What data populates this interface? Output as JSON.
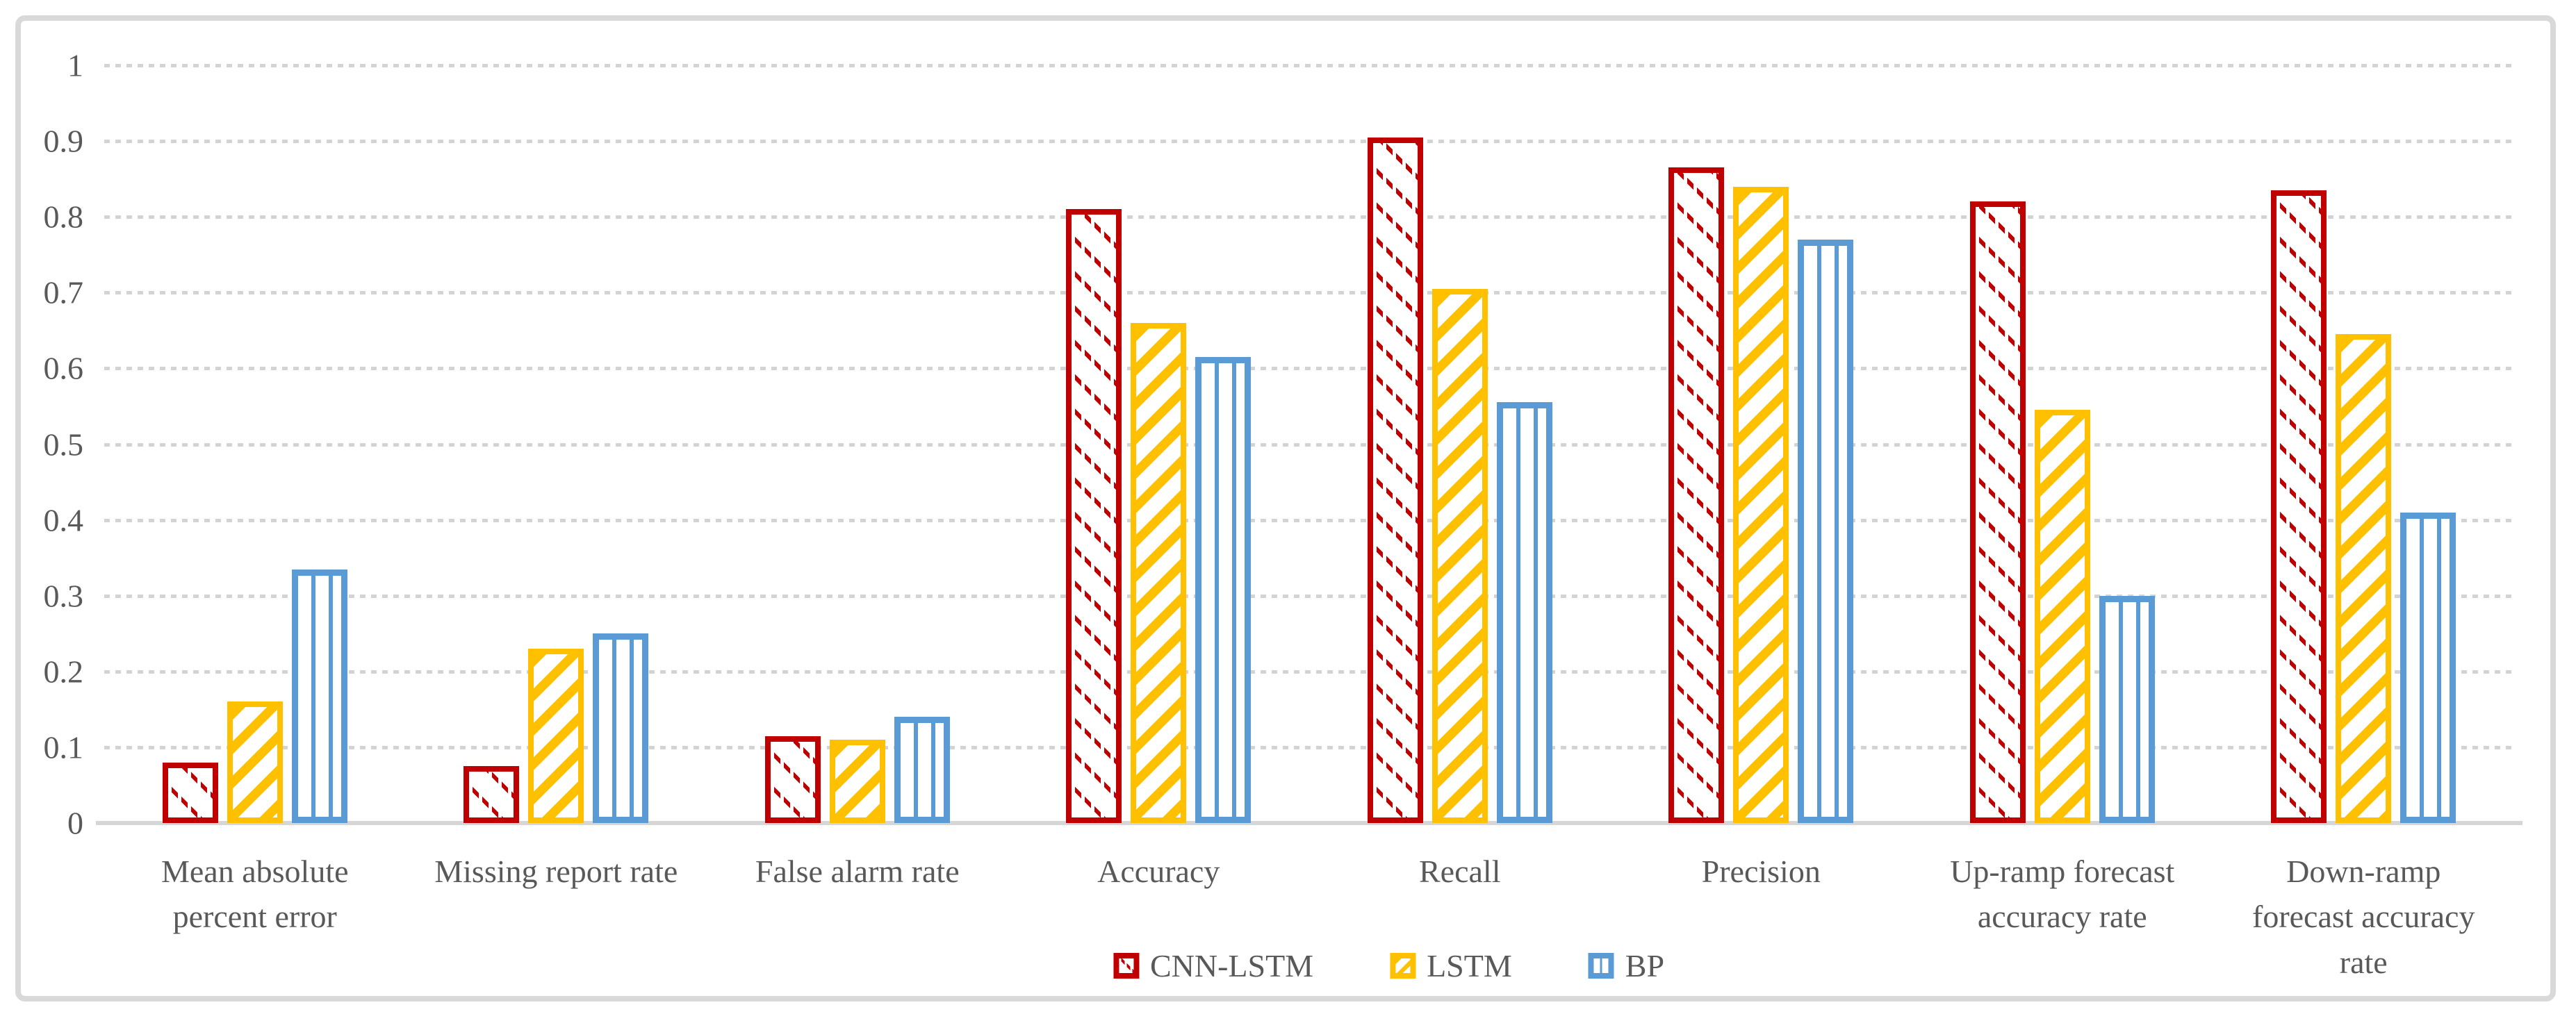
{
  "figure": {
    "background_color": "#FFFFFF",
    "frame_color": "#D9D9D9",
    "axis_text_color": "#595959",
    "gridline_color": "#D3D3D3",
    "baseline_color": "#D6D6D6"
  },
  "chart_data": {
    "type": "bar",
    "title": "",
    "xlabel": "",
    "ylabel": "",
    "ylim": [
      0,
      1
    ],
    "ytick_labels": [
      "1",
      "0.9",
      "0.8",
      "0.7",
      "0.6",
      "0.5",
      "0.4",
      "0.3",
      "0.2",
      "0.1",
      "0"
    ],
    "grid": "horizontal-dotted",
    "legend_position": "bottom-center",
    "categories": [
      "Mean absolute\npercent error",
      "Missing report rate",
      "False alarm rate",
      "Accuracy",
      "Recall",
      "Precision",
      "Up-ramp forecast\naccuracy rate",
      "Down-ramp\nforecast accuracy\nrate"
    ],
    "series": [
      {
        "name": "CNN-LSTM",
        "color": "#C00000",
        "pattern": "dashed-diagonal-down",
        "values": [
          0.08,
          0.075,
          0.115,
          0.81,
          0.905,
          0.865,
          0.82,
          0.835
        ]
      },
      {
        "name": "LSTM",
        "color": "#FFC000",
        "pattern": "wide-diagonal-up",
        "values": [
          0.16,
          0.23,
          0.11,
          0.66,
          0.705,
          0.84,
          0.545,
          0.645
        ]
      },
      {
        "name": "BP",
        "color": "#5B9BD5",
        "pattern": "vertical-stripes",
        "values": [
          0.335,
          0.25,
          0.14,
          0.615,
          0.555,
          0.77,
          0.3,
          0.41
        ]
      }
    ]
  }
}
